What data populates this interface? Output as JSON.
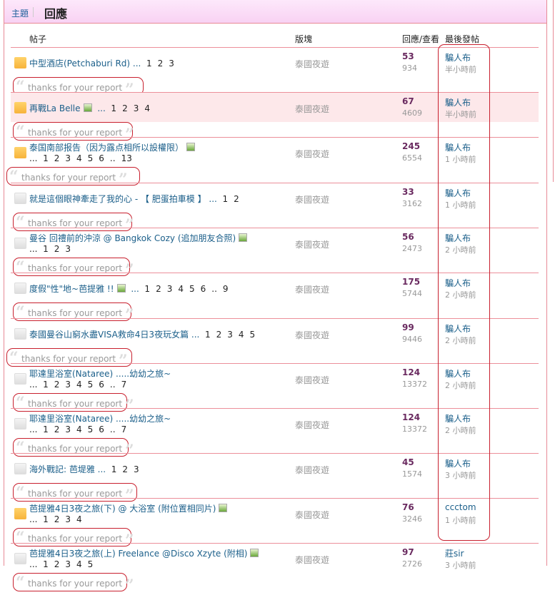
{
  "header": {
    "tab_topic": "主題",
    "tab_reply": "回應"
  },
  "columns": {
    "post": "帖子",
    "board": "版塊",
    "replies_views": "回應/查看",
    "last_post": "最後發帖"
  },
  "quote_text": "thanks for your report",
  "rows": [
    {
      "title": "中型酒店(Petchaburi Rd)",
      "image": false,
      "pages": [
        "1",
        "2",
        "3"
      ],
      "pages_newline": false,
      "hot": true,
      "board": "泰國夜遊",
      "replies": "53",
      "views": "934",
      "last_user": "騙人布",
      "last_time": "半小時前",
      "highlight": false
    },
    {
      "title": "再戰La Belle",
      "image": true,
      "pages": [
        "1",
        "2",
        "3",
        "4"
      ],
      "pages_newline": false,
      "hot": true,
      "board": "泰國夜遊",
      "replies": "67",
      "views": "4609",
      "last_user": "騙人布",
      "last_time": "半小時前",
      "highlight": true
    },
    {
      "title": "泰国南部报告（因为露点相所以設權限）",
      "image": true,
      "pages": [
        "1",
        "2",
        "3",
        "4",
        "5",
        "6",
        "..",
        "13"
      ],
      "pages_newline": true,
      "hot": true,
      "board": "泰國夜遊",
      "replies": "245",
      "views": "6554",
      "last_user": "騙人布",
      "last_time": "1 小時前",
      "highlight": false
    },
    {
      "title": "就是這個眼神牽走了我的心 - 【 肥蛋拍車模 】",
      "image": false,
      "pages": [
        "1",
        "2"
      ],
      "pages_newline": false,
      "hot": false,
      "board": "泰國夜遊",
      "replies": "33",
      "views": "3162",
      "last_user": "騙人布",
      "last_time": "1 小時前",
      "highlight": false
    },
    {
      "title": "曼谷 回禮前的沖涼 @ Bangkok Cozy (追加朋友合照)",
      "image": true,
      "pages": [
        "1",
        "2",
        "3"
      ],
      "pages_newline": true,
      "hot": false,
      "board": "泰國夜遊",
      "replies": "56",
      "views": "2473",
      "last_user": "騙人布",
      "last_time": "2 小時前",
      "highlight": false
    },
    {
      "title": "度假\"性\"地~芭提雅 !!",
      "image": true,
      "pages": [
        "1",
        "2",
        "3",
        "4",
        "5",
        "6",
        "..",
        "9"
      ],
      "pages_newline": false,
      "hot": false,
      "board": "泰國夜遊",
      "replies": "175",
      "views": "5744",
      "last_user": "騙人布",
      "last_time": "2 小時前",
      "highlight": false
    },
    {
      "title": "泰國曼谷山窮水盡VISA救命4日3夜玩女篇",
      "image": false,
      "pages": [
        "1",
        "2",
        "3",
        "4",
        "5"
      ],
      "pages_newline": false,
      "hot": false,
      "board": "泰國夜遊",
      "replies": "99",
      "views": "9446",
      "last_user": "騙人布",
      "last_time": "2 小時前",
      "highlight": false
    },
    {
      "title": "耶達里浴室(Nataree) .....幼幼之旅~",
      "image": false,
      "pages": [
        "1",
        "2",
        "3",
        "4",
        "5",
        "6",
        "..",
        "7"
      ],
      "pages_newline": true,
      "hot": false,
      "board": "泰國夜遊",
      "replies": "124",
      "views": "13372",
      "last_user": "騙人布",
      "last_time": "2 小時前",
      "highlight": false
    },
    {
      "title": "耶達里浴室(Nataree) .....幼幼之旅~",
      "image": false,
      "pages": [
        "1",
        "2",
        "3",
        "4",
        "5",
        "6",
        "..",
        "7"
      ],
      "pages_newline": true,
      "hot": false,
      "board": "泰國夜遊",
      "replies": "124",
      "views": "13372",
      "last_user": "騙人布",
      "last_time": "2 小時前",
      "highlight": false
    },
    {
      "title": "海外戰記: 芭堤雅",
      "image": false,
      "pages": [
        "1",
        "2",
        "3"
      ],
      "pages_newline": false,
      "hot": false,
      "board": "泰國夜遊",
      "replies": "45",
      "views": "1574",
      "last_user": "騙人布",
      "last_time": "3 小時前",
      "highlight": false
    },
    {
      "title": "芭提雅4日3夜之旅(下) @ 大浴室 (附位置相同片)",
      "image": true,
      "pages": [
        "1",
        "2",
        "3",
        "4"
      ],
      "pages_newline": true,
      "hot": true,
      "board": "泰國夜遊",
      "replies": "76",
      "views": "3246",
      "last_user": "ccctom",
      "last_time": "1 小時前",
      "highlight": false
    },
    {
      "title": "芭提雅4日3夜之旅(上) Freelance @Disco Xzyte (附相)",
      "image": true,
      "pages": [
        "1",
        "2",
        "3",
        "4",
        "5"
      ],
      "pages_newline": true,
      "hot": false,
      "board": "泰國夜遊",
      "replies": "97",
      "views": "2726",
      "last_user": "莊sir",
      "last_time": "3 小時前",
      "highlight": false
    }
  ],
  "colors": {
    "accent_border": "#ec8f9a",
    "annotation": "#c8202e",
    "link": "#1b5f8a",
    "count": "#6a2a60"
  }
}
